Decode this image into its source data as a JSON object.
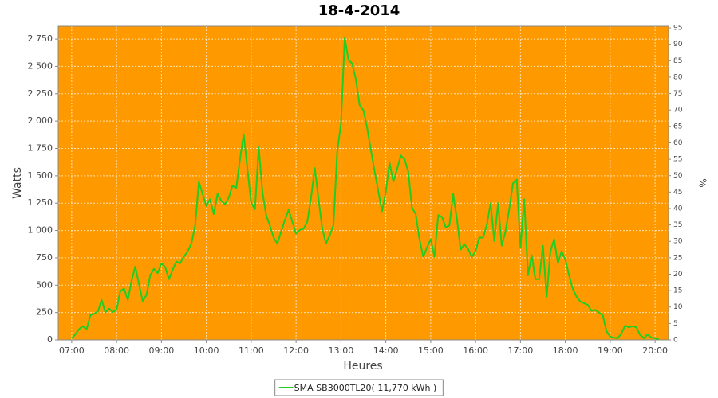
{
  "chart_data": {
    "type": "line",
    "title": "18-4-2014",
    "xlabel": "Heures",
    "ylabel": "Watts",
    "y2label": "%",
    "background": "#ff9900",
    "grid": true,
    "x": [
      "07:00",
      "07:05",
      "07:10",
      "07:15",
      "07:20",
      "07:25",
      "07:30",
      "07:35",
      "07:40",
      "07:45",
      "07:50",
      "07:55",
      "08:00",
      "08:05",
      "08:10",
      "08:15",
      "08:20",
      "08:25",
      "08:30",
      "08:35",
      "08:40",
      "08:45",
      "08:50",
      "08:55",
      "09:00",
      "09:05",
      "09:10",
      "09:15",
      "09:20",
      "09:25",
      "09:30",
      "09:35",
      "09:40",
      "09:45",
      "09:50",
      "09:55",
      "10:00",
      "10:05",
      "10:10",
      "10:15",
      "10:20",
      "10:25",
      "10:30",
      "10:35",
      "10:40",
      "10:45",
      "10:50",
      "10:55",
      "11:00",
      "11:05",
      "11:10",
      "11:15",
      "11:20",
      "11:25",
      "11:30",
      "11:35",
      "11:40",
      "11:45",
      "11:50",
      "11:55",
      "12:00",
      "12:05",
      "12:10",
      "12:15",
      "12:20",
      "12:25",
      "12:30",
      "12:35",
      "12:40",
      "12:45",
      "12:50",
      "12:55",
      "13:00",
      "13:05",
      "13:10",
      "13:15",
      "13:20",
      "13:25",
      "13:30",
      "13:35",
      "13:40",
      "13:45",
      "13:50",
      "13:55",
      "14:00",
      "14:05",
      "14:10",
      "14:15",
      "14:20",
      "14:25",
      "14:30",
      "14:35",
      "14:40",
      "14:45",
      "14:50",
      "14:55",
      "15:00",
      "15:05",
      "15:10",
      "15:15",
      "15:20",
      "15:25",
      "15:30",
      "15:35",
      "15:40",
      "15:45",
      "15:50",
      "15:55",
      "16:00",
      "16:05",
      "16:10",
      "16:15",
      "16:20",
      "16:25",
      "16:30",
      "16:35",
      "16:40",
      "16:45",
      "16:50",
      "16:55",
      "17:00",
      "17:05",
      "17:10",
      "17:15",
      "17:20",
      "17:25",
      "17:30",
      "17:35",
      "17:40",
      "17:45",
      "17:50",
      "17:55",
      "18:00",
      "18:05",
      "18:10",
      "18:15",
      "18:20",
      "18:25",
      "18:30",
      "18:35",
      "18:40",
      "18:45",
      "18:50",
      "18:55",
      "19:00",
      "19:05",
      "19:10",
      "19:15",
      "19:20",
      "19:25",
      "19:30",
      "19:35",
      "19:40",
      "19:45",
      "19:50",
      "19:55",
      "20:00",
      "20:05"
    ],
    "series": [
      {
        "name": "SMA SB3000TL20( 11,770 kWh )",
        "color": "#22cc22",
        "values": [
          15,
          50,
          100,
          125,
          95,
          225,
          240,
          260,
          365,
          250,
          285,
          255,
          275,
          445,
          470,
          365,
          540,
          670,
          505,
          355,
          410,
          590,
          650,
          610,
          700,
          665,
          555,
          640,
          715,
          700,
          760,
          810,
          880,
          1045,
          1445,
          1335,
          1225,
          1285,
          1150,
          1335,
          1270,
          1240,
          1300,
          1410,
          1385,
          1650,
          1880,
          1560,
          1250,
          1195,
          1760,
          1355,
          1140,
          1045,
          935,
          880,
          990,
          1095,
          1190,
          1080,
          970,
          1005,
          1015,
          1080,
          1300,
          1570,
          1285,
          1020,
          880,
          955,
          1050,
          1720,
          1975,
          2760,
          2560,
          2525,
          2380,
          2145,
          2100,
          1940,
          1735,
          1540,
          1355,
          1175,
          1355,
          1620,
          1445,
          1560,
          1685,
          1650,
          1540,
          1210,
          1150,
          920,
          760,
          845,
          920,
          760,
          1140,
          1125,
          1030,
          1045,
          1335,
          1105,
          825,
          875,
          830,
          760,
          810,
          935,
          935,
          1050,
          1250,
          905,
          1250,
          860,
          990,
          1195,
          1430,
          1465,
          845,
          1285,
          590,
          775,
          555,
          555,
          860,
          395,
          810,
          920,
          700,
          810,
          735,
          590,
          465,
          395,
          350,
          335,
          320,
          265,
          275,
          250,
          225,
          80,
          30,
          20,
          15,
          60,
          130,
          115,
          125,
          115,
          45,
          15,
          50,
          20,
          15,
          5
        ]
      }
    ],
    "xlim": [
      "06:42",
      "20:18"
    ],
    "xticks": [
      "07:00",
      "08:00",
      "09:00",
      "10:00",
      "11:00",
      "12:00",
      "13:00",
      "14:00",
      "15:00",
      "16:00",
      "17:00",
      "18:00",
      "19:00",
      "20:00"
    ],
    "ylim": [
      0,
      2867
    ],
    "yticks": [
      0,
      250,
      500,
      750,
      {
        "value": 1000,
        "label": "1 000"
      },
      {
        "value": 1250,
        "label": "1 250"
      },
      {
        "value": 1500,
        "label": "1 500"
      },
      {
        "value": 1750,
        "label": "1 750"
      },
      {
        "value": 2000,
        "label": "2 000"
      },
      {
        "value": 2250,
        "label": "2 250"
      },
      {
        "value": 2500,
        "label": "2 500"
      },
      {
        "value": 2750,
        "label": "2 750"
      }
    ],
    "y2lim": [
      0,
      95.5
    ],
    "y2ticks": [
      0,
      5,
      10,
      15,
      20,
      25,
      30,
      35,
      40,
      45,
      50,
      55,
      60,
      65,
      70,
      75,
      80,
      85,
      90,
      95
    ]
  }
}
